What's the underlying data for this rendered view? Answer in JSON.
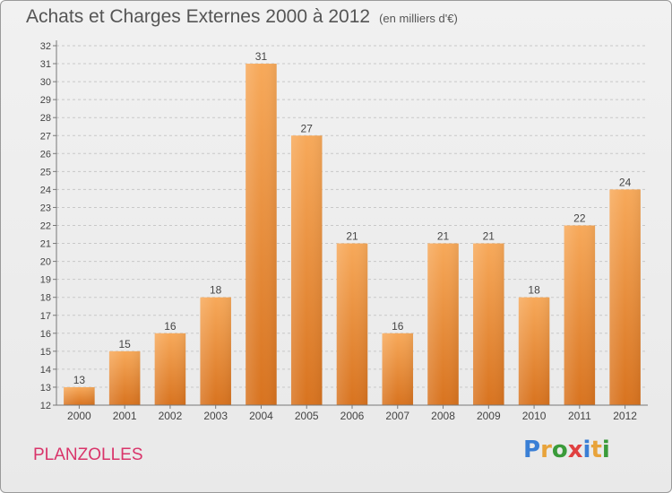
{
  "title": "Achats et Charges Externes 2000 à 2012",
  "subtitle": "(en milliers d'€)",
  "town": "PLANZOLLES",
  "logo": {
    "text": "Proxiti",
    "letters": [
      {
        "ch": "P",
        "color": "#3a7fd5"
      },
      {
        "ch": "r",
        "color": "#e8a33a"
      },
      {
        "ch": "o",
        "color": "#3a9b3a"
      },
      {
        "ch": "x",
        "color": "#e04040"
      },
      {
        "ch": "i",
        "color": "#3a7fd5"
      },
      {
        "ch": "t",
        "color": "#e8a33a"
      },
      {
        "ch": "i",
        "color": "#3a9b3a"
      }
    ]
  },
  "colors": {
    "bar_light": "#f7a95a",
    "bar_dark": "#d8731f",
    "grid": "#c8c8c8",
    "axis_text": "#444444",
    "town": "#d9346a"
  },
  "chart_data": {
    "type": "bar",
    "categories": [
      "2000",
      "2001",
      "2002",
      "2003",
      "2004",
      "2005",
      "2006",
      "2007",
      "2008",
      "2009",
      "2010",
      "2011",
      "2012"
    ],
    "values": [
      13,
      15,
      16,
      18,
      31,
      27,
      21,
      16,
      21,
      21,
      18,
      22,
      24
    ],
    "ylim": [
      12,
      32
    ],
    "yticks": [
      12,
      13,
      14,
      15,
      16,
      17,
      18,
      19,
      20,
      21,
      22,
      23,
      24,
      25,
      26,
      27,
      28,
      29,
      30,
      31,
      32
    ],
    "grid": true,
    "xlabel": "",
    "ylabel": ""
  }
}
